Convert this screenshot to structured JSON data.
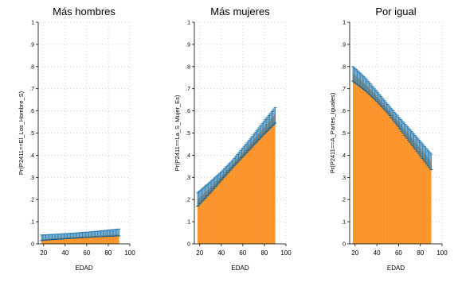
{
  "chart_data": [
    {
      "type": "area",
      "title": "Más hombres",
      "xlabel": "EDAD",
      "ylabel": "Pr(P2411==El_Los_Hombre_S)",
      "xlim": [
        15,
        100
      ],
      "ylim": [
        0,
        1
      ],
      "xticks": [
        20,
        40,
        60,
        80,
        100
      ],
      "yticks": [
        0,
        0.1,
        0.2,
        0.3,
        0.4,
        0.5,
        0.6,
        0.7,
        0.8,
        0.9,
        1
      ],
      "ytick_labels": [
        "0",
        ".1",
        ".2",
        ".3",
        ".4",
        ".5",
        ".6",
        ".7",
        ".8",
        ".9",
        "1"
      ],
      "grid": true,
      "x": [
        18,
        30,
        40,
        50,
        60,
        70,
        80,
        90
      ],
      "values": [
        0.02,
        0.025,
        0.028,
        0.031,
        0.034,
        0.037,
        0.04,
        0.043
      ],
      "ci_lower": [
        0.015,
        0.02,
        0.023,
        0.026,
        0.029,
        0.032,
        0.034,
        0.036
      ],
      "ci_upper": [
        0.04,
        0.043,
        0.046,
        0.049,
        0.053,
        0.057,
        0.062,
        0.067
      ]
    },
    {
      "type": "area",
      "title": "Más mujeres",
      "xlabel": "EDAD",
      "ylabel": "Pr(P2411==La_S_Mujer_Es)",
      "xlim": [
        15,
        100
      ],
      "ylim": [
        0,
        1
      ],
      "xticks": [
        20,
        40,
        60,
        80,
        100
      ],
      "yticks": [
        0,
        0.1,
        0.2,
        0.3,
        0.4,
        0.5,
        0.6,
        0.7,
        0.8,
        0.9,
        1
      ],
      "ytick_labels": [
        "0",
        ".1",
        ".2",
        ".3",
        ".4",
        ".5",
        ".6",
        ".7",
        ".8",
        ".9",
        "1"
      ],
      "grid": true,
      "x": [
        18,
        30,
        40,
        50,
        60,
        70,
        80,
        90
      ],
      "values": [
        0.2,
        0.256,
        0.306,
        0.358,
        0.413,
        0.469,
        0.526,
        0.585
      ],
      "ci_lower": [
        0.17,
        0.232,
        0.288,
        0.342,
        0.394,
        0.446,
        0.497,
        0.545
      ],
      "ci_upper": [
        0.23,
        0.28,
        0.324,
        0.374,
        0.432,
        0.492,
        0.555,
        0.615
      ]
    },
    {
      "type": "area",
      "title": "Por igual",
      "xlabel": "EDAD",
      "ylabel": "Pr(P2411==A_Partes_Iguales)",
      "xlim": [
        15,
        100
      ],
      "ylim": [
        0,
        1
      ],
      "xticks": [
        20,
        40,
        60,
        80,
        100
      ],
      "yticks": [
        0,
        0.1,
        0.2,
        0.3,
        0.4,
        0.5,
        0.6,
        0.7,
        0.8,
        0.9,
        1
      ],
      "ytick_labels": [
        "0",
        ".1",
        ".2",
        ".3",
        ".4",
        ".5",
        ".6",
        ".7",
        ".8",
        ".9",
        "1"
      ],
      "grid": true,
      "x": [
        18,
        30,
        40,
        50,
        60,
        70,
        80,
        90
      ],
      "values": [
        0.77,
        0.717,
        0.666,
        0.61,
        0.55,
        0.49,
        0.43,
        0.37
      ],
      "ci_lower": [
        0.735,
        0.69,
        0.644,
        0.591,
        0.528,
        0.462,
        0.398,
        0.335
      ],
      "ci_upper": [
        0.8,
        0.745,
        0.688,
        0.629,
        0.572,
        0.518,
        0.462,
        0.405
      ]
    }
  ],
  "colors": {
    "fill": "#ff9a32",
    "fill_edge": "#ee8a22",
    "ci": "#2f7fb4",
    "ci_dark": "#1f5f86",
    "grid": "#c8c8c8",
    "axis": "#000000",
    "text": "#000000"
  }
}
